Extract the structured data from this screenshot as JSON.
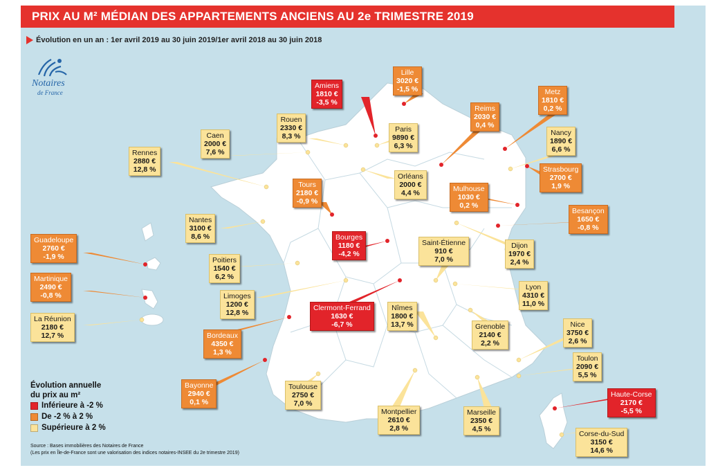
{
  "title": "PRIX AU M² MÉDIAN DES APPARTEMENTS ANCIENS AU 2e TRIMESTRE 2019",
  "subtitle": "Évolution en un an : 1er avril 2019 au 30 juin 2019/1er avril 2018 au 30 juin 2018",
  "logo": {
    "line1": "Notaires",
    "line2": "de France"
  },
  "colors": {
    "red": "#e2242a",
    "orange": "#ee8a35",
    "yellow": "#fbe39a",
    "panel": "#c6e0ea",
    "land": "#ffffff",
    "title_bar": "#e5322d"
  },
  "cities": [
    {
      "name": "Amiens",
      "price": "1810 €",
      "change": "-3,5 %",
      "class": "red"
    },
    {
      "name": "Lille",
      "price": "3020 €",
      "change": "-1,5 %",
      "class": "orange"
    },
    {
      "name": "Metz",
      "price": "1810 €",
      "change": "0,2 %",
      "class": "orange"
    },
    {
      "name": "Reims",
      "price": "2030 €",
      "change": "0,4 %",
      "class": "orange"
    },
    {
      "name": "Rouen",
      "price": "2330 €",
      "change": "8,3 %",
      "class": "yellow"
    },
    {
      "name": "Caen",
      "price": "2000 €",
      "change": "7,6 %",
      "class": "yellow"
    },
    {
      "name": "Paris",
      "price": "9890 €",
      "change": "6,3 %",
      "class": "yellow"
    },
    {
      "name": "Nancy",
      "price": "1890 €",
      "change": "6,6 %",
      "class": "yellow"
    },
    {
      "name": "Rennes",
      "price": "2880 €",
      "change": "12,8 %",
      "class": "yellow"
    },
    {
      "name": "Strasbourg",
      "price": "2700 €",
      "change": "1,9 %",
      "class": "orange"
    },
    {
      "name": "Orléans",
      "price": "2000 €",
      "change": "4,4 %",
      "class": "yellow"
    },
    {
      "name": "Tours",
      "price": "2180 €",
      "change": "-0,9 %",
      "class": "orange"
    },
    {
      "name": "Mulhouse",
      "price": "1030 €",
      "change": "0,2 %",
      "class": "orange"
    },
    {
      "name": "Nantes",
      "price": "3100 €",
      "change": "8,6 %",
      "class": "yellow"
    },
    {
      "name": "Besançon",
      "price": "1650 €",
      "change": "-0,8 %",
      "class": "orange"
    },
    {
      "name": "Guadeloupe",
      "price": "2760 €",
      "change": "-1,9 %",
      "class": "orange"
    },
    {
      "name": "Bourges",
      "price": "1180 €",
      "change": "-4,2 %",
      "class": "red"
    },
    {
      "name": "Saint-Étienne",
      "price": "910 €",
      "change": "7,0 %",
      "class": "yellow"
    },
    {
      "name": "Dijon",
      "price": "1970 €",
      "change": "2,4 %",
      "class": "yellow"
    },
    {
      "name": "Poitiers",
      "price": "1540 €",
      "change": "6,2 %",
      "class": "yellow"
    },
    {
      "name": "Martinique",
      "price": "2490 €",
      "change": "-0,8 %",
      "class": "orange"
    },
    {
      "name": "Limoges",
      "price": "1200 €",
      "change": "12,8 %",
      "class": "yellow"
    },
    {
      "name": "Lyon",
      "price": "4310 €",
      "change": "11,0 %",
      "class": "yellow"
    },
    {
      "name": "Clermont-Ferrand",
      "price": "1630 €",
      "change": "-6,7 %",
      "class": "red"
    },
    {
      "name": "La Réunion",
      "price": "2180 €",
      "change": "12,7 %",
      "class": "yellow"
    },
    {
      "name": "Nîmes",
      "price": "1800 €",
      "change": "13,7 %",
      "class": "yellow"
    },
    {
      "name": "Nice",
      "price": "3750 €",
      "change": "2,6 %",
      "class": "yellow"
    },
    {
      "name": "Grenoble",
      "price": "2140 €",
      "change": "2,2 %",
      "class": "yellow"
    },
    {
      "name": "Bordeaux",
      "price": "4350 €",
      "change": "1,3 %",
      "class": "orange"
    },
    {
      "name": "Toulon",
      "price": "2090 €",
      "change": "5,5 %",
      "class": "yellow"
    },
    {
      "name": "Bayonne",
      "price": "2940 €",
      "change": "0,1 %",
      "class": "orange"
    },
    {
      "name": "Toulouse",
      "price": "2750 €",
      "change": "7,0 %",
      "class": "yellow"
    },
    {
      "name": "Haute-Corse",
      "price": "2170 €",
      "change": "-5,5 %",
      "class": "red"
    },
    {
      "name": "Montpellier",
      "price": "2610 €",
      "change": "2,8 %",
      "class": "yellow"
    },
    {
      "name": "Marseille",
      "price": "2350 €",
      "change": "4,5 %",
      "class": "yellow"
    },
    {
      "name": "Corse-du-Sud",
      "price": "3150 €",
      "change": "14,6 %",
      "class": "yellow"
    }
  ],
  "legend": {
    "title_line1": "Évolution annuelle",
    "title_line2": "du prix au m²",
    "items": [
      {
        "label": "Inférieure à -2 %",
        "color": "#e2242a"
      },
      {
        "label": "De -2 % à 2 %",
        "color": "#ee8a35"
      },
      {
        "label": "Supérieure à 2 %",
        "color": "#fbe39a"
      }
    ]
  },
  "source": {
    "line1": "Source : Bases immobilières des Notaires de France",
    "line2": "(Les prix en Île-de-France sont une valorisation des indices notaires-INSEE du 2e trimestre 2019)"
  }
}
